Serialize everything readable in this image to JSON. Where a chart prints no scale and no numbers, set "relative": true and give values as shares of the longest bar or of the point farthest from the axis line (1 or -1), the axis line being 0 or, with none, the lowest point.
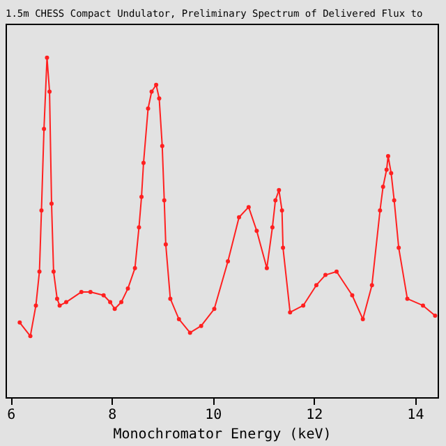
{
  "chart_data": {
    "type": "line",
    "title": "1.5m CHESS Compact Undulator, Preliminary Spectrum of Delivered Flux to",
    "xlabel": "Monochromator Energy (keV)",
    "relative": true,
    "xlim": [
      5.9,
      14.45
    ],
    "xticks": [
      6,
      8,
      10,
      12,
      14
    ],
    "grid": false,
    "marker": "circle",
    "line_style": "solid",
    "series": [
      {
        "color": "#ff2020",
        "x": [
          6.18,
          6.39,
          6.5,
          6.57,
          6.61,
          6.66,
          6.72,
          6.77,
          6.81,
          6.85,
          6.92,
          6.97,
          7.1,
          7.4,
          7.58,
          7.84,
          7.97,
          8.06,
          8.19,
          8.32,
          8.46,
          8.54,
          8.59,
          8.63,
          8.72,
          8.79,
          8.88,
          8.94,
          9.0,
          9.04,
          9.07,
          9.16,
          9.33,
          9.55,
          9.77,
          10.03,
          10.3,
          10.52,
          10.71,
          10.87,
          11.07,
          11.18,
          11.24,
          11.31,
          11.37,
          11.39,
          11.53,
          11.79,
          12.05,
          12.23,
          12.45,
          12.76,
          12.97,
          13.15,
          13.31,
          13.37,
          13.44,
          13.47,
          13.53,
          13.59,
          13.68,
          13.85,
          14.16,
          14.4
        ],
        "values": [
          0.22,
          0.18,
          0.27,
          0.37,
          0.55,
          0.79,
          1.0,
          0.9,
          0.57,
          0.37,
          0.29,
          0.27,
          0.28,
          0.31,
          0.31,
          0.3,
          0.28,
          0.26,
          0.28,
          0.32,
          0.38,
          0.5,
          0.59,
          0.69,
          0.85,
          0.9,
          0.92,
          0.88,
          0.74,
          0.58,
          0.45,
          0.29,
          0.23,
          0.19,
          0.21,
          0.26,
          0.4,
          0.53,
          0.56,
          0.49,
          0.38,
          0.5,
          0.58,
          0.61,
          0.55,
          0.44,
          0.25,
          0.27,
          0.33,
          0.36,
          0.37,
          0.3,
          0.23,
          0.33,
          0.55,
          0.62,
          0.67,
          0.71,
          0.66,
          0.58,
          0.44,
          0.29,
          0.27,
          0.24
        ]
      }
    ]
  }
}
